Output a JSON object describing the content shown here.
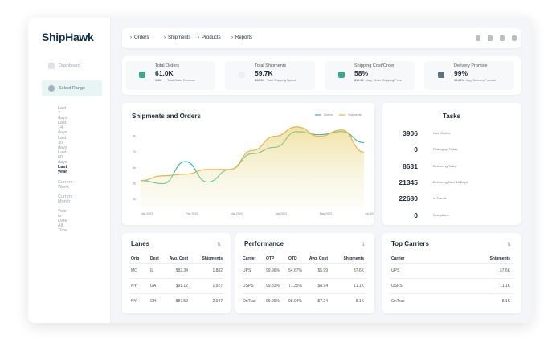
{
  "header": {
    "logo": "ShipHawk",
    "nav": [
      "Orders",
      "Shipments",
      "Products",
      "Reports"
    ]
  },
  "sidebar": {
    "dashboard": "Dashboard",
    "select_range": "Select Range",
    "ranges": [
      "Last 7 days",
      "Last 14 days",
      "Last 30 days",
      "Last 60 days",
      "Last year",
      "Current Week",
      "Current Month",
      "Year to Date",
      "All Time"
    ]
  },
  "kpis": [
    {
      "label": "Total Orders",
      "value": "61.0K",
      "sub_value": "1.3M",
      "sub_label": "Total Order Revenue"
    },
    {
      "label": "Total Shipments",
      "value": "59.7K",
      "sub_value": "$36.2K",
      "sub_label": "Total Shipping Spend"
    },
    {
      "label": "Shipping Cost/Order",
      "value": "58%",
      "sub_value": "$10.56",
      "sub_label": "Avg. Order Shipping Price"
    },
    {
      "label": "Delivery Promise",
      "value": "99%",
      "sub_value": "99.86%",
      "sub_label": "Avg. Delivery Promise"
    }
  ],
  "chart_data": {
    "type": "line",
    "title": "Shipments and Orders",
    "categories": [
      "Jan 2023",
      null,
      "Feb 2023",
      null,
      "Mar 2023",
      null,
      "Apr 2023",
      null,
      "May 2023",
      null,
      "Jun 2023"
    ],
    "series": [
      {
        "name": "Orders",
        "color": "#3fb8a3",
        "values": [
          5.2,
          5.0,
          6.4,
          5.1,
          5.9,
          6.9,
          7.3,
          8.3,
          8.1,
          8.3,
          7.6
        ]
      },
      {
        "name": "Shipments",
        "color": "#e6b54a",
        "values": [
          5.2,
          5.5,
          5.6,
          5.9,
          5.9,
          7.1,
          8.0,
          8.6,
          8.0,
          8.4,
          7.0
        ]
      }
    ],
    "ylim": [
      3.5,
      9
    ],
    "yticks": [
      {
        "value": 4,
        "label": "4k"
      },
      {
        "value": 5,
        "label": "5k"
      },
      {
        "value": 6,
        "label": "6k"
      },
      {
        "value": 7,
        "label": "7k"
      },
      {
        "value": 8,
        "label": "8k"
      }
    ],
    "area_under": "Shipments",
    "legend": "top-right"
  },
  "tasks": {
    "title": "Tasks",
    "items": [
      {
        "count": 3906,
        "label": "New Orders"
      },
      {
        "count": 0,
        "label": "Picking up Today"
      },
      {
        "count": 8631,
        "label": "Delivering Today"
      },
      {
        "count": 21345,
        "label": "Delivering Next 14 Days"
      },
      {
        "count": 22680,
        "label": "In Transit"
      },
      {
        "count": 0,
        "label": "Exceptions"
      }
    ]
  },
  "lanes": {
    "title": "Lanes",
    "columns": [
      "Orig",
      "Dest",
      "Avg. Cost",
      "Shipments"
    ],
    "rows": [
      [
        "MO",
        "IL",
        "$82.34",
        "1,882"
      ],
      [
        "NY",
        "GA",
        "$91.12",
        "1,927"
      ],
      [
        "NY",
        "OH",
        "$87.59",
        "2,047"
      ]
    ]
  },
  "performance": {
    "title": "Performance",
    "columns": [
      "Carrier",
      "OTP",
      "OTD",
      "Avg. Cost",
      "Shipments"
    ],
    "rows": [
      [
        "UPS",
        "99.96%",
        "54.67%",
        "$5.99",
        "37.6K"
      ],
      [
        "USPS",
        "99.83%",
        "71.35%",
        "$8.94",
        "11.1K"
      ],
      [
        "OnTrac",
        "99.99%",
        "98.94%",
        "$7.24",
        "8.1K"
      ]
    ]
  },
  "top_carriers": {
    "title": "Top Carriers",
    "columns": [
      "Carrier",
      "Shipments"
    ],
    "rows": [
      [
        "UPS",
        "37.6K"
      ],
      [
        "USPS",
        "11.1K"
      ],
      [
        "OnTrac",
        "8.1K"
      ]
    ]
  }
}
